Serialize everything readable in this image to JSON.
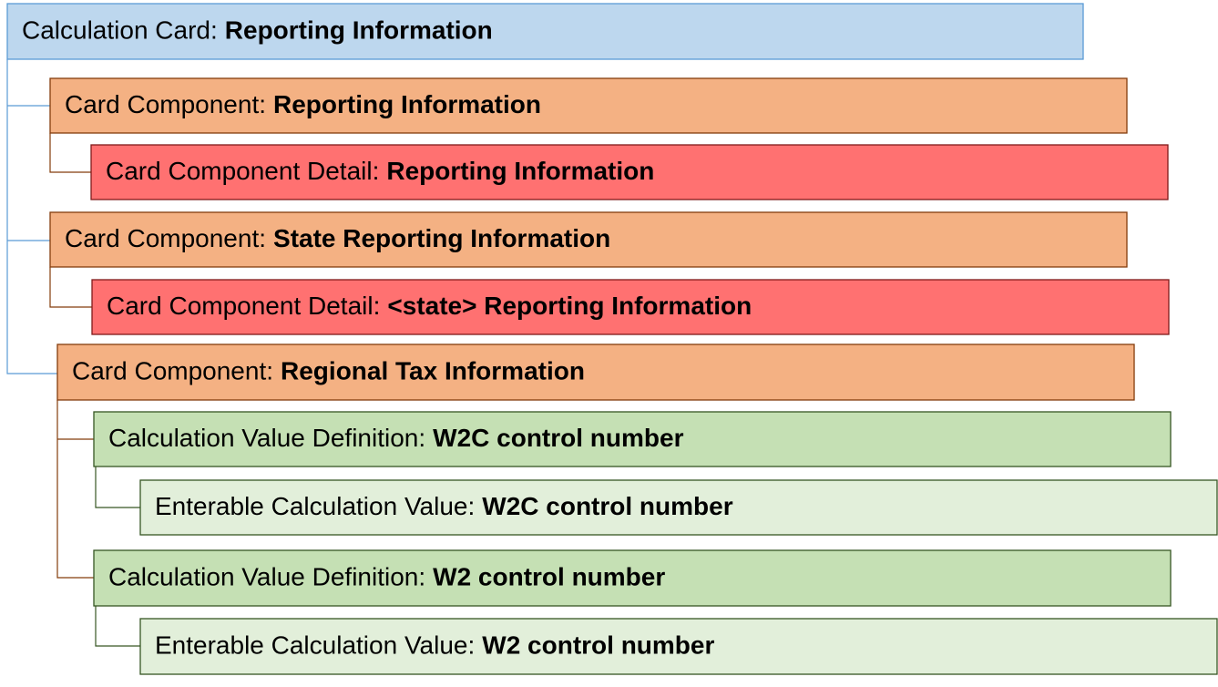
{
  "nodes": [
    {
      "kind": "Calculation Card:",
      "name": "Reporting Information"
    },
    {
      "kind": "Card Component:",
      "name": "Reporting Information"
    },
    {
      "kind": "Card Component Detail:",
      "name": "Reporting Information"
    },
    {
      "kind": "Card Component:",
      "name": "State Reporting Information"
    },
    {
      "kind": "Card Component Detail:",
      "name": "<state> Reporting Information"
    },
    {
      "kind": "Card Component:",
      "name": "Regional Tax Information"
    },
    {
      "kind": "Calculation Value Definition:",
      "name": "W2C control number"
    },
    {
      "kind": "Enterable Calculation Value:",
      "name": "W2C control number"
    },
    {
      "kind": "Calculation Value Definition:",
      "name": "W2 control number"
    },
    {
      "kind": "Enterable Calculation Value:",
      "name": "W2 control number"
    }
  ]
}
